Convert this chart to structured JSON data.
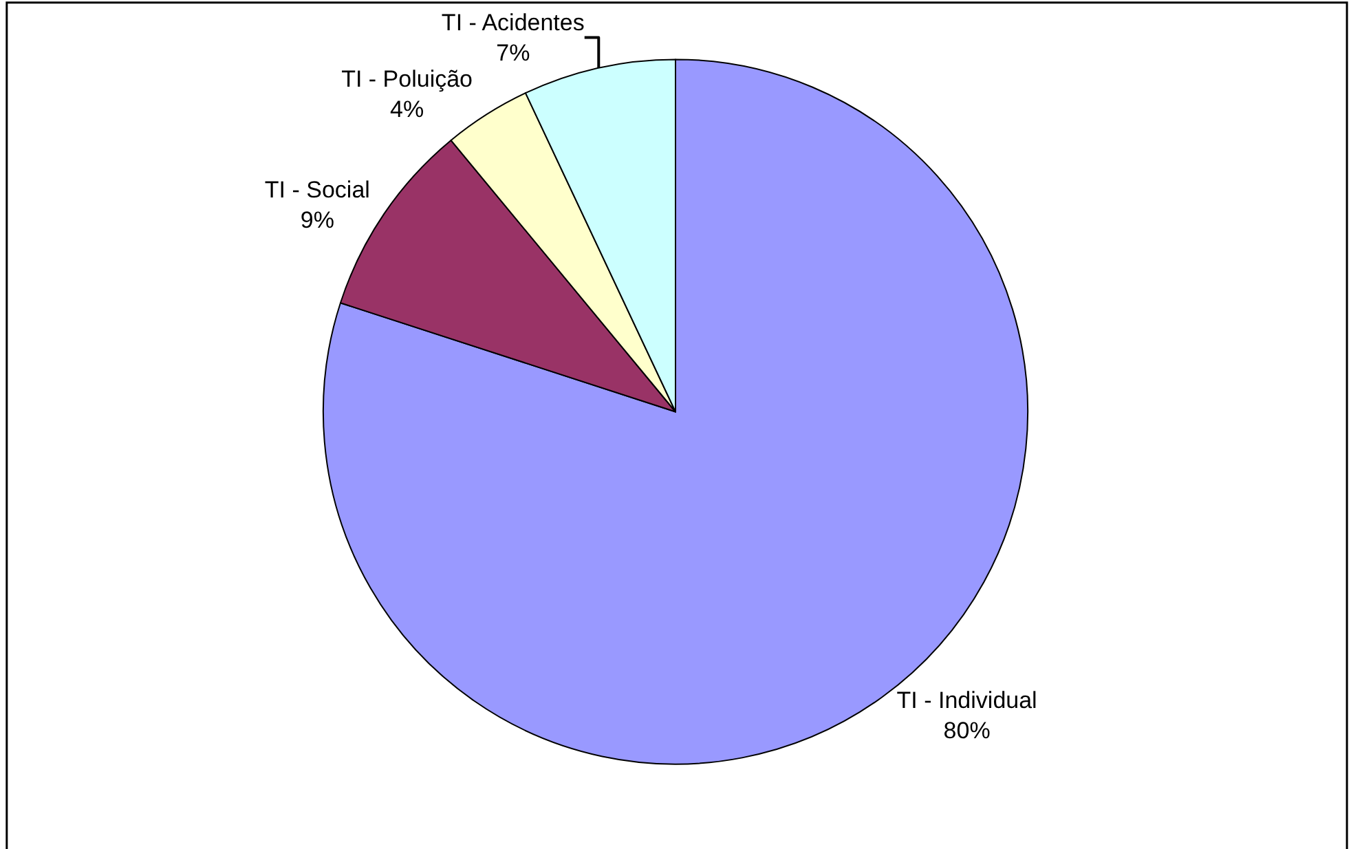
{
  "chart_data": {
    "type": "pie",
    "categories": [
      "TI - Individual",
      "TI - Social",
      "TI - Poluição",
      "TI - Acidentes"
    ],
    "values": [
      80,
      9,
      4,
      7
    ],
    "value_labels": [
      "80%",
      "9%",
      "4%",
      "7%"
    ],
    "colors": [
      "#9999ff",
      "#993366",
      "#ffffcc",
      "#ccffff"
    ],
    "legend": false
  }
}
